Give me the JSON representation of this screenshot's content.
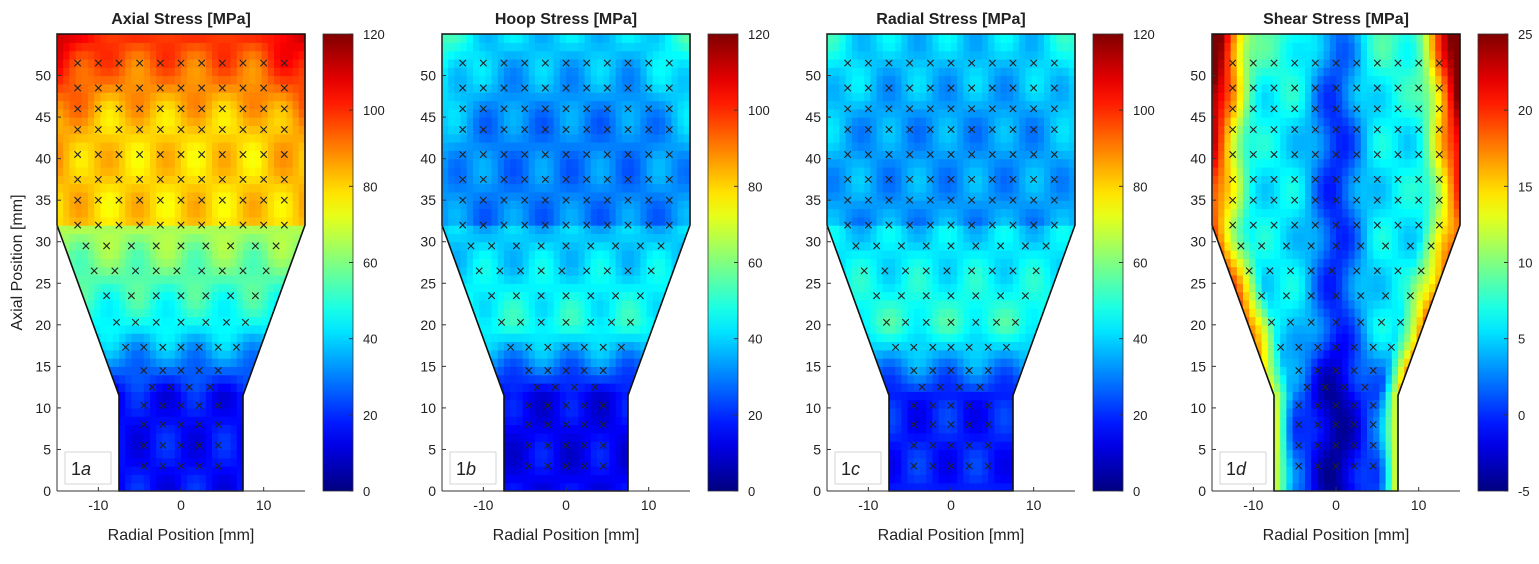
{
  "x_axis_label": "Radial Position [mm]",
  "y_axis_label": "Axial Position [mm]",
  "colormap": "jet",
  "chart_data": [
    {
      "type": "heatmap",
      "title": "Axial Stress [MPa]",
      "panel_label": "1a",
      "panel_number": "1",
      "panel_letter": "a",
      "xlim": [
        -15,
        15
      ],
      "ylim": [
        0,
        55
      ],
      "xticks": [
        -10,
        0,
        10
      ],
      "yticks": [
        0,
        5,
        10,
        15,
        20,
        25,
        30,
        35,
        40,
        45,
        50
      ],
      "colorbar": {
        "min": 0,
        "max": 120,
        "ticks": [
          0,
          20,
          40,
          60,
          80,
          100,
          120
        ]
      },
      "field": {
        "neck": 16,
        "shoulder": 45,
        "mid": 80,
        "top": 100,
        "corner_boost": 12,
        "center_dip": 0
      }
    },
    {
      "type": "heatmap",
      "title": "Hoop Stress [MPa]",
      "panel_label": "1b",
      "panel_number": "1",
      "panel_letter": "b",
      "xlim": [
        -15,
        15
      ],
      "ylim": [
        0,
        55
      ],
      "xticks": [
        -10,
        0,
        10
      ],
      "yticks": [
        0,
        5,
        10,
        15,
        20,
        25,
        30,
        35,
        40,
        45,
        50
      ],
      "colorbar": {
        "min": 0,
        "max": 120,
        "ticks": [
          0,
          20,
          40,
          60,
          80,
          100,
          120
        ]
      },
      "field": {
        "neck": 14,
        "shoulder": 48,
        "mid": 30,
        "top": 40,
        "corner_boost": 12,
        "center_dip": 0
      }
    },
    {
      "type": "heatmap",
      "title": "Radial Stress [MPa]",
      "panel_label": "1c",
      "panel_number": "1",
      "panel_letter": "c",
      "xlim": [
        -15,
        15
      ],
      "ylim": [
        0,
        55
      ],
      "xticks": [
        -10,
        0,
        10
      ],
      "yticks": [
        0,
        5,
        10,
        15,
        20,
        25,
        30,
        35,
        40,
        45,
        50
      ],
      "colorbar": {
        "min": 0,
        "max": 120,
        "ticks": [
          0,
          20,
          40,
          60,
          80,
          100,
          120
        ]
      },
      "field": {
        "neck": 18,
        "shoulder": 50,
        "mid": 33,
        "top": 40,
        "corner_boost": 8,
        "center_dip": 0
      }
    },
    {
      "type": "heatmap",
      "title": "Shear Stress [MPa]",
      "panel_label": "1d",
      "panel_number": "1",
      "panel_letter": "d",
      "xlim": [
        -15,
        15
      ],
      "ylim": [
        0,
        55
      ],
      "xticks": [
        -10,
        0,
        10
      ],
      "yticks": [
        0,
        5,
        10,
        15,
        20,
        25,
        30,
        35,
        40,
        45,
        50
      ],
      "colorbar": {
        "min": -5,
        "max": 25,
        "ticks": [
          -5,
          0,
          5,
          10,
          15,
          20,
          25
        ]
      },
      "field": {
        "neck": 2,
        "shoulder": 6,
        "mid": 6,
        "top": 8,
        "corner_boost": 10,
        "center_dip": 6,
        "edge_boost": 12
      }
    }
  ],
  "measurement_points": {
    "rows": [
      {
        "y": 3,
        "x": [
          -4.5,
          -2.2,
          0,
          2.2,
          4.5
        ]
      },
      {
        "y": 5.5,
        "x": [
          -4.5,
          -2.2,
          0,
          2.2,
          4.5
        ]
      },
      {
        "y": 8,
        "x": [
          -4.5,
          -2.2,
          0,
          2.2,
          4.5
        ]
      },
      {
        "y": 10.3,
        "x": [
          -4.5,
          -2.2,
          0,
          2.2,
          4.5
        ]
      },
      {
        "y": 12.5,
        "x": [
          -3.5,
          -1.3,
          1,
          3.5
        ]
      },
      {
        "y": 14.5,
        "x": [
          -4.5,
          -2.2,
          0,
          2.2,
          4.5
        ]
      },
      {
        "y": 17.3,
        "x": [
          -6.7,
          -4.5,
          -2.2,
          0,
          2.2,
          4.5,
          6.7
        ]
      },
      {
        "y": 20.3,
        "x": [
          -7.8,
          -5.5,
          -3,
          0,
          3,
          5.5,
          7.8
        ]
      },
      {
        "y": 23.5,
        "x": [
          -9,
          -6,
          -3,
          0,
          3,
          6,
          9
        ]
      },
      {
        "y": 26.5,
        "x": [
          -10.5,
          -8,
          -5.5,
          -3,
          -0.5,
          2.5,
          5,
          7.5,
          10.3
        ]
      },
      {
        "y": 29.5,
        "x": [
          -11.5,
          -9,
          -6,
          -3,
          0,
          3,
          6,
          9,
          11.5
        ]
      },
      {
        "y": 32,
        "x": [
          -12.5,
          -10,
          -7.5,
          -5,
          -2.5,
          0,
          2.5,
          5,
          7.5,
          10,
          12.5
        ]
      },
      {
        "y": 35,
        "x": [
          -12.5,
          -10,
          -7.5,
          -5,
          -2.5,
          0,
          2.5,
          5,
          7.5,
          10,
          12.5
        ]
      },
      {
        "y": 37.5,
        "x": [
          -12.5,
          -10,
          -7.5,
          -5,
          -2.5,
          0,
          2.5,
          5,
          7.5,
          10,
          12.5
        ]
      },
      {
        "y": 40.5,
        "x": [
          -12.5,
          -10,
          -7.5,
          -5,
          -2.5,
          0,
          2.5,
          5,
          7.5,
          10,
          12.5
        ]
      },
      {
        "y": 43.5,
        "x": [
          -12.5,
          -10,
          -7.5,
          -5,
          -2.5,
          0,
          2.5,
          5,
          7.5,
          10,
          12.5
        ]
      },
      {
        "y": 46,
        "x": [
          -12.5,
          -10,
          -7.5,
          -5,
          -2.5,
          0,
          2.5,
          5,
          7.5,
          10,
          12.5
        ]
      },
      {
        "y": 48.5,
        "x": [
          -12.5,
          -10,
          -7.5,
          -5,
          -2.5,
          0,
          2.5,
          5,
          7.5,
          10,
          12.5
        ]
      },
      {
        "y": 51.5,
        "x": [
          -12.5,
          -10,
          -7.5,
          -5,
          -2.5,
          0,
          2.5,
          5,
          7.5,
          10,
          12.5
        ]
      }
    ]
  },
  "specimen_outline": [
    {
      "x": -7.5,
      "y": 0
    },
    {
      "x": 7.5,
      "y": 0
    },
    {
      "x": 7.5,
      "y": 11.5
    },
    {
      "x": 15,
      "y": 32
    },
    {
      "x": 15,
      "y": 55
    },
    {
      "x": -15,
      "y": 55
    },
    {
      "x": -15,
      "y": 32
    },
    {
      "x": -7.5,
      "y": 11.5
    }
  ]
}
